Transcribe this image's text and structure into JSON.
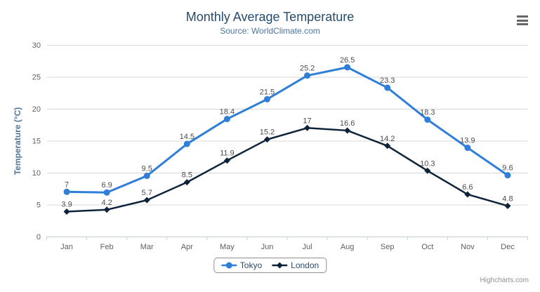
{
  "header": {
    "title": "Monthly Average Temperature",
    "subtitle": "Source: WorldClimate.com"
  },
  "credits": "Highcharts.com",
  "colors": {
    "title": "#274b6d",
    "subtitle": "#4d759e",
    "axis_title": "#4d759e",
    "axis_label": "#606060",
    "data_label": "#4d4d4d",
    "grid_line": "#d8d8d8",
    "axis_line": "#c0d0e0",
    "legend_text": "#274b6d",
    "legend_border": "#909090",
    "credits": "#909090",
    "menu_icon": "#666666",
    "tokyo_series": "#2f7ed8",
    "london_series": "#0d233a"
  },
  "chart_data": {
    "type": "line",
    "title": "Monthly Average Temperature",
    "subtitle": "Source: WorldClimate.com",
    "xlabel": "",
    "ylabel": "Temperature (°C)",
    "ylim": [
      0,
      30
    ],
    "ytick_step": 5,
    "grid": true,
    "legend_position": "bottom",
    "data_labels": true,
    "categories": [
      "Jan",
      "Feb",
      "Mar",
      "Apr",
      "May",
      "Jun",
      "Jul",
      "Aug",
      "Sep",
      "Oct",
      "Nov",
      "Dec"
    ],
    "series": [
      {
        "name": "Tokyo",
        "color": "#2f7ed8",
        "marker": "circle",
        "values": [
          7,
          6.9,
          9.5,
          14.5,
          18.4,
          21.5,
          25.2,
          26.5,
          23.3,
          18.3,
          13.9,
          9.6
        ]
      },
      {
        "name": "London",
        "color": "#0d233a",
        "marker": "diamond",
        "values": [
          3.9,
          4.2,
          5.7,
          8.5,
          11.9,
          15.2,
          17,
          16.6,
          14.2,
          10.3,
          6.6,
          4.8
        ]
      }
    ]
  }
}
